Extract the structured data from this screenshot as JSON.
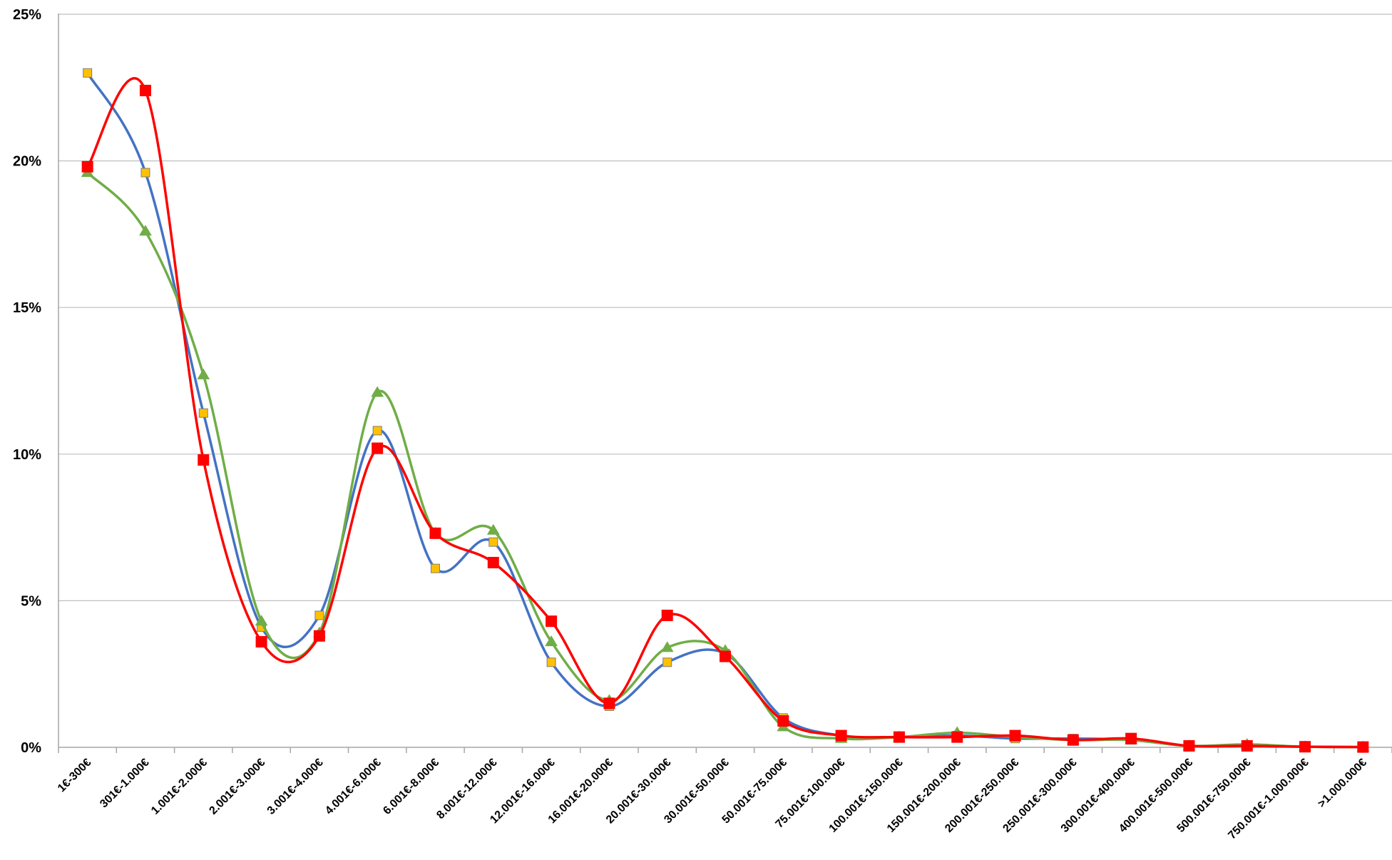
{
  "chart_data": {
    "type": "line",
    "smooth": true,
    "categories": [
      "1€-300€",
      "301€-1.000€",
      "1.001€-2.000€",
      "2.001€-3.000€",
      "3.001€-4.000€",
      "4.001€-6.000€",
      "6.001€-8.000€",
      "8.001€-12.000€",
      "12.001€-16.000€",
      "16.001€-20.000€",
      "20.001€-30.000€",
      "30.001€-50.000€",
      "50.001€-75.000€",
      "75.001€-100.000€",
      "100.001€-150.000€",
      "150.001€-200.000€",
      "200.001€-250.000€",
      "250.001€-300.000€",
      "300.001€-400.000€",
      "400.001€-500.000€",
      "500.001€-750.000€",
      "750.001€-1.000.000€",
      ">1.000.000€"
    ],
    "ylim": [
      0,
      25
    ],
    "y_ticks": [
      "0%",
      "5%",
      "10%",
      "15%",
      "20%",
      "25%"
    ],
    "grid": "horizontal",
    "legend": "none",
    "series": [
      {
        "line_color": "#4472C4",
        "marker": "square",
        "marker_color": "#FFC000",
        "values": [
          23.0,
          19.6,
          11.4,
          4.1,
          4.5,
          10.8,
          6.1,
          7.0,
          2.9,
          1.4,
          2.9,
          3.2,
          1.0,
          0.4,
          0.35,
          0.4,
          0.3,
          0.3,
          0.25,
          0.05,
          0.05,
          0.02,
          0.01
        ]
      },
      {
        "line_color": "#70AD47",
        "marker": "triangle",
        "marker_color": "#70AD47",
        "values": [
          19.6,
          17.6,
          12.7,
          4.3,
          3.9,
          12.1,
          7.3,
          7.4,
          3.6,
          1.6,
          3.4,
          3.3,
          0.7,
          0.3,
          0.35,
          0.5,
          0.35,
          0.25,
          0.25,
          0.05,
          0.1,
          0.02,
          0.01
        ]
      },
      {
        "line_color": "#FF0000",
        "marker": "square",
        "marker_color": "#FF0000",
        "values": [
          19.8,
          22.4,
          9.8,
          3.6,
          3.8,
          10.2,
          7.3,
          6.3,
          4.3,
          1.5,
          4.5,
          3.1,
          0.9,
          0.4,
          0.35,
          0.35,
          0.4,
          0.25,
          0.3,
          0.05,
          0.05,
          0.02,
          0.01
        ]
      }
    ]
  }
}
